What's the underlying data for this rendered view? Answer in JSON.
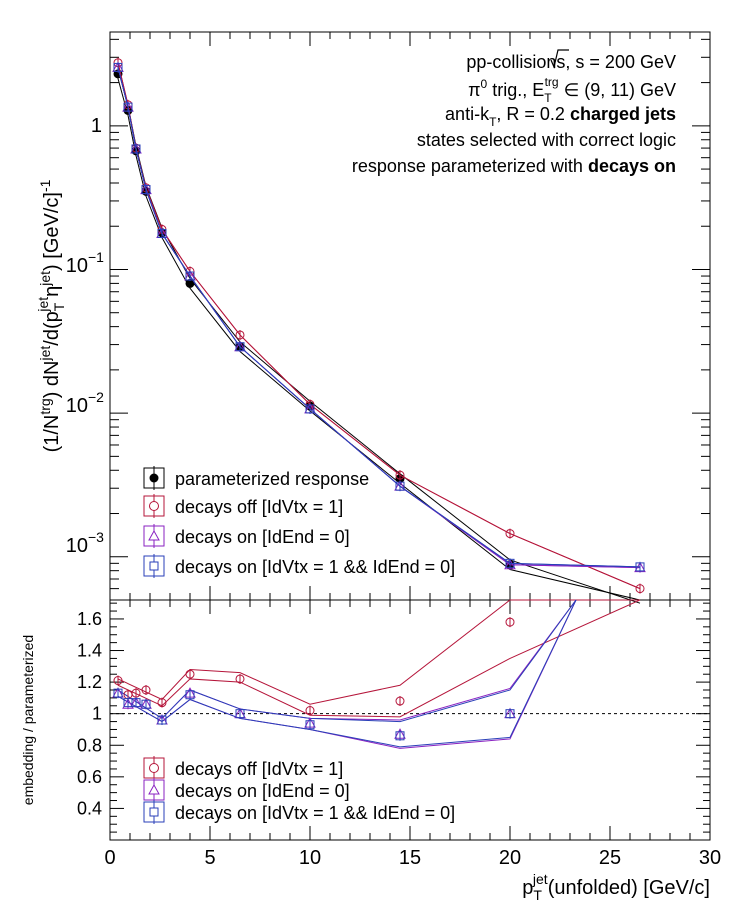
{
  "chart_data": [
    {
      "type": "line",
      "panel": "main",
      "xlim": [
        0,
        30
      ],
      "ylim": [
        0.0005,
        4.5
      ],
      "yscale": "log",
      "ylabel": {
        "pre": "(1/N",
        "trg": "trg",
        "mid1": ") dN",
        "jet1": "jet",
        "mid2": "/d(p",
        "T": "T",
        "jet2": "jet",
        "eta": "η",
        "jet3": "jet",
        "mid3": ") [GeV/c]",
        "exp": "-1"
      },
      "ytick_labels": [
        {
          "value": 1,
          "base": "1",
          "exp": ""
        },
        {
          "value": 0.1,
          "base": "10",
          "exp": "−1"
        },
        {
          "value": 0.01,
          "base": "10",
          "exp": "−2"
        },
        {
          "value": 0.001,
          "base": "10",
          "exp": "−3"
        }
      ],
      "annotations": {
        "line1_a": "pp-collisions, ",
        "line1_s": "s",
        "line1_b": " = 200 GeV",
        "line2_pi": "π",
        "line2_zero": "0",
        "line2_a": " trig., E",
        "line2_T": "T",
        "line2_trg": "trg",
        "line2_b": " ∈ (9, 11) GeV",
        "line3_a": "anti-k",
        "line3_T": "T",
        "line3_b": ", R = 0.2 ",
        "line3_bold": "charged jets",
        "line4": "states selected with correct logic",
        "line5_a": "response parameterized with ",
        "line5_bold": "decays on"
      },
      "legend_placement": "bottom-left",
      "series": [
        {
          "name": "parameterized response",
          "marker": "filled-circle",
          "color": "#000000",
          "x": [
            0.4,
            0.9,
            1.3,
            1.8,
            2.6,
            4.0,
            6.5,
            10.0,
            14.5,
            20.0,
            26.5
          ],
          "y": [
            2.3,
            1.28,
            0.67,
            0.35,
            0.18,
            0.08,
            0.029,
            0.0112,
            0.0035,
            0.00088,
            0.00044
          ]
        },
        {
          "name": "decays off [IdVtx = 1]",
          "marker": "open-circle",
          "color": "#b5153a",
          "x": [
            0.4,
            0.9,
            1.3,
            1.8,
            2.6,
            4.0,
            6.5,
            10.0,
            14.5,
            20.0,
            26.5
          ],
          "y": [
            2.75,
            1.4,
            0.7,
            0.37,
            0.19,
            0.097,
            0.035,
            0.0115,
            0.0037,
            0.00145,
            0.0006
          ]
        },
        {
          "name": "decays on [IdEnd = 0]",
          "marker": "open-triangle",
          "color": "#8a22c2",
          "x": [
            0.4,
            0.9,
            1.3,
            1.8,
            2.6,
            4.0,
            6.5,
            10.0,
            14.5,
            20.0,
            26.5
          ],
          "y": [
            2.55,
            1.35,
            0.69,
            0.36,
            0.178,
            0.09,
            0.029,
            0.0107,
            0.0031,
            0.00088,
            0.00084
          ]
        },
        {
          "name": "decays on [IdVtx = 1 && IdEnd = 0]",
          "marker": "open-square",
          "color": "#2a3fb8",
          "x": [
            0.4,
            0.9,
            1.3,
            1.8,
            2.6,
            4.0,
            6.5,
            10.0,
            14.5,
            20.0,
            26.5
          ],
          "y": [
            2.55,
            1.35,
            0.69,
            0.36,
            0.178,
            0.09,
            0.029,
            0.0107,
            0.0031,
            0.0009,
            0.00085
          ]
        }
      ]
    },
    {
      "type": "line",
      "panel": "ratio",
      "xlim": [
        0,
        30
      ],
      "ylim": [
        0.2,
        1.72
      ],
      "xticks": [
        0,
        5,
        10,
        15,
        20,
        25,
        30
      ],
      "yticks": [
        0.4,
        0.6,
        0.8,
        1,
        1.2,
        1.4,
        1.6
      ],
      "ytick_labels": [
        "0.4",
        "0.6",
        "0.8",
        "1",
        "1.2",
        "1.4",
        "1.6"
      ],
      "xtick_labels": [
        "0",
        "5",
        "10",
        "15",
        "20",
        "25",
        "30"
      ],
      "xlabel": {
        "p": "p",
        "T": "T",
        "jet": "jet",
        "rest": "(unfolded) [GeV/c]"
      },
      "ylabel": "embedding / parameterized",
      "reference_line": 1,
      "legend_placement": "bottom-left",
      "series": [
        {
          "name": "decays off [IdVtx = 1]",
          "marker": "open-circle",
          "color": "#b5153a",
          "x": [
            0.4,
            0.9,
            1.3,
            1.8,
            2.6,
            4.0,
            6.5,
            10.0,
            14.5,
            20.0
          ],
          "y": [
            1.21,
            1.12,
            1.13,
            1.15,
            1.07,
            1.25,
            1.22,
            1.02,
            1.08,
            1.58
          ]
        },
        {
          "name": "decays on [IdEnd = 0]",
          "marker": "open-triangle",
          "color": "#8a22c2",
          "x": [
            0.4,
            0.9,
            1.3,
            1.8,
            2.6,
            4.0,
            6.5,
            10.0,
            14.5,
            20.0
          ],
          "y": [
            1.13,
            1.06,
            1.07,
            1.06,
            0.96,
            1.13,
            1.0,
            0.94,
            0.87,
            1.0
          ]
        },
        {
          "name": "decays on [IdVtx = 1 && IdEnd = 0]",
          "marker": "open-square",
          "color": "#2a3fb8",
          "x": [
            0.4,
            0.9,
            1.3,
            1.8,
            2.6,
            4.0,
            6.5,
            10.0,
            14.5,
            20.0
          ],
          "y": [
            1.13,
            1.07,
            1.07,
            1.06,
            0.96,
            1.12,
            1.0,
            0.93,
            0.86,
            1.0
          ]
        }
      ],
      "bands": [
        {
          "color": "#b5153a",
          "x": [
            0.4,
            2.6,
            4.0,
            6.5,
            10.0,
            14.5,
            20.0,
            26.5
          ],
          "upper": [
            1.22,
            1.09,
            1.28,
            1.26,
            1.06,
            1.18,
            1.72,
            1.72
          ],
          "lower": [
            1.18,
            1.05,
            1.22,
            1.2,
            0.99,
            0.98,
            1.35,
            1.72
          ]
        },
        {
          "color": "#8a22c2",
          "x": [
            0.4,
            2.6,
            4.0,
            6.5,
            10.0,
            14.5,
            20.0,
            23.3
          ],
          "upper": [
            1.15,
            0.97,
            1.15,
            1.03,
            0.97,
            0.96,
            1.16,
            1.72
          ],
          "lower": [
            1.11,
            0.95,
            1.09,
            0.97,
            0.9,
            0.78,
            0.84,
            1.72
          ]
        },
        {
          "color": "#2a3fb8",
          "x": [
            0.4,
            2.6,
            4.0,
            6.5,
            10.0,
            14.5,
            20.0,
            23.3
          ],
          "upper": [
            1.15,
            0.97,
            1.15,
            1.03,
            0.97,
            0.95,
            1.15,
            1.72
          ],
          "lower": [
            1.11,
            0.95,
            1.09,
            0.97,
            0.9,
            0.79,
            0.85,
            1.72
          ]
        }
      ]
    }
  ]
}
